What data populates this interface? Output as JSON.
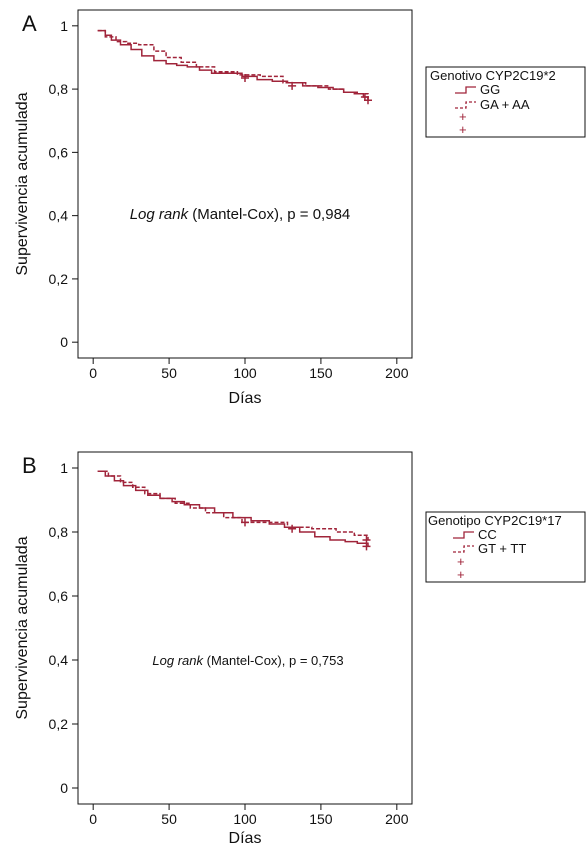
{
  "chart_data": [
    {
      "type": "line",
      "panel_label": "A",
      "xlabel": "Días",
      "ylabel": "Supervivencia acumulada",
      "xlim": [
        -10,
        210
      ],
      "ylim": [
        -0.05,
        1.05
      ],
      "x_ticks": [
        0,
        50,
        100,
        150,
        200
      ],
      "y_ticks": [
        0,
        0.2,
        0.4,
        0.6,
        0.8,
        1
      ],
      "y_tick_labels": [
        "0",
        "0,2",
        "0,4",
        "0,6",
        "0,8",
        "1"
      ],
      "annotation": {
        "italic": "Log rank",
        "rest": " (Mantel-Cox), p = 0,984"
      },
      "legend": {
        "title": "Genotivo CYP2C19*2",
        "placement": "right",
        "entries": [
          "GG",
          "GA + AA",
          "",
          ""
        ]
      },
      "series": [
        {
          "name": "GG",
          "style": "solid",
          "x": [
            3,
            8,
            12,
            18,
            25,
            32,
            40,
            48,
            55,
            62,
            70,
            78,
            88,
            98,
            108,
            118,
            128,
            138,
            148,
            158,
            165,
            172,
            178,
            181
          ],
          "values": [
            0.985,
            0.97,
            0.955,
            0.94,
            0.925,
            0.905,
            0.89,
            0.88,
            0.875,
            0.87,
            0.86,
            0.85,
            0.85,
            0.84,
            0.83,
            0.825,
            0.82,
            0.81,
            0.805,
            0.8,
            0.79,
            0.785,
            0.775,
            0.77
          ]
        },
        {
          "name": "GA + AA",
          "style": "dashed",
          "x": [
            3,
            8,
            15,
            22,
            30,
            40,
            48,
            58,
            68,
            80,
            95,
            110,
            125,
            140,
            155,
            165,
            175,
            181
          ],
          "values": [
            0.985,
            0.965,
            0.95,
            0.945,
            0.94,
            0.92,
            0.9,
            0.885,
            0.87,
            0.855,
            0.845,
            0.84,
            0.82,
            0.81,
            0.8,
            0.79,
            0.785,
            0.76
          ]
        }
      ],
      "censor_marks": [
        {
          "x": 100,
          "y": 0.835
        },
        {
          "x": 131,
          "y": 0.81
        },
        {
          "x": 179,
          "y": 0.775
        },
        {
          "x": 181,
          "y": 0.765
        }
      ],
      "color": "#a0243a",
      "grid": false
    },
    {
      "type": "line",
      "panel_label": "B",
      "xlabel": "Días",
      "ylabel": "Supervivencia acumulada",
      "xlim": [
        -10,
        210
      ],
      "ylim": [
        -0.05,
        1.05
      ],
      "x_ticks": [
        0,
        50,
        100,
        150,
        200
      ],
      "y_ticks": [
        0,
        0.2,
        0.4,
        0.6,
        0.8,
        1
      ],
      "y_tick_labels": [
        "0",
        "0,2",
        "0,4",
        "0,6",
        "0,8",
        "1"
      ],
      "annotation": {
        "italic": "Log rank",
        "rest": " (Mantel-Cox), p = 0,753"
      },
      "legend": {
        "title": "Genotipo CYP2C19*17",
        "placement": "right",
        "entries": [
          "CC",
          "GT + TT",
          "",
          ""
        ]
      },
      "series": [
        {
          "name": "CC",
          "style": "solid",
          "x": [
            3,
            8,
            14,
            20,
            28,
            36,
            44,
            52,
            60,
            70,
            80,
            92,
            104,
            116,
            126,
            136,
            146,
            156,
            166,
            174,
            181
          ],
          "values": [
            0.99,
            0.975,
            0.96,
            0.945,
            0.93,
            0.915,
            0.905,
            0.895,
            0.885,
            0.875,
            0.86,
            0.845,
            0.835,
            0.825,
            0.815,
            0.8,
            0.785,
            0.775,
            0.77,
            0.765,
            0.755
          ]
        },
        {
          "name": "GT + TT",
          "style": "dashed",
          "x": [
            3,
            10,
            18,
            26,
            34,
            44,
            54,
            64,
            74,
            86,
            98,
            112,
            128,
            144,
            160,
            172,
            181
          ],
          "values": [
            0.99,
            0.975,
            0.955,
            0.94,
            0.92,
            0.905,
            0.89,
            0.875,
            0.86,
            0.845,
            0.83,
            0.83,
            0.815,
            0.81,
            0.8,
            0.79,
            0.775
          ]
        }
      ],
      "censor_marks": [
        {
          "x": 100,
          "y": 0.83
        },
        {
          "x": 131,
          "y": 0.81
        },
        {
          "x": 180,
          "y": 0.775
        },
        {
          "x": 180,
          "y": 0.755
        }
      ],
      "color": "#a0243a",
      "grid": false
    }
  ]
}
